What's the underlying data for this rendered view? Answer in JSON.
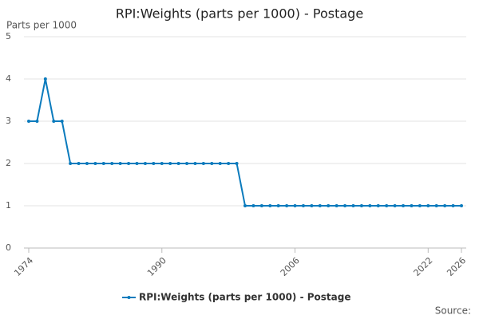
{
  "chart_data": {
    "type": "line",
    "title": "RPI:Weights (parts per 1000) - Postage",
    "y_label": "Parts per 1000",
    "source": "Source:",
    "x": [
      1974,
      1975,
      1976,
      1977,
      1978,
      1979,
      1980,
      1981,
      1982,
      1983,
      1984,
      1985,
      1986,
      1987,
      1988,
      1989,
      1990,
      1991,
      1992,
      1993,
      1994,
      1995,
      1996,
      1997,
      1998,
      1999,
      2000,
      2001,
      2002,
      2003,
      2004,
      2005,
      2006,
      2007,
      2008,
      2009,
      2010,
      2011,
      2012,
      2013,
      2014,
      2015,
      2016,
      2017,
      2018,
      2019,
      2020,
      2021,
      2022,
      2023,
      2024,
      2025,
      2026
    ],
    "series": [
      {
        "name": "RPI:Weights (parts per 1000) - Postage",
        "color": "#0b7bbd",
        "values": [
          3,
          3,
          4,
          3,
          3,
          2,
          2,
          2,
          2,
          2,
          2,
          2,
          2,
          2,
          2,
          2,
          2,
          2,
          2,
          2,
          2,
          2,
          2,
          2,
          2,
          2,
          1,
          1,
          1,
          1,
          1,
          1,
          1,
          1,
          1,
          1,
          1,
          1,
          1,
          1,
          1,
          1,
          1,
          1,
          1,
          1,
          1,
          1,
          1,
          1,
          1,
          1,
          1
        ]
      }
    ],
    "xlim": [
      1974,
      2026
    ],
    "xticks": [
      1974,
      1990,
      2006,
      2022,
      2026
    ],
    "ylim": [
      0,
      5
    ],
    "yticks": [
      0,
      1,
      2,
      3,
      4,
      5
    ],
    "grid": true
  }
}
